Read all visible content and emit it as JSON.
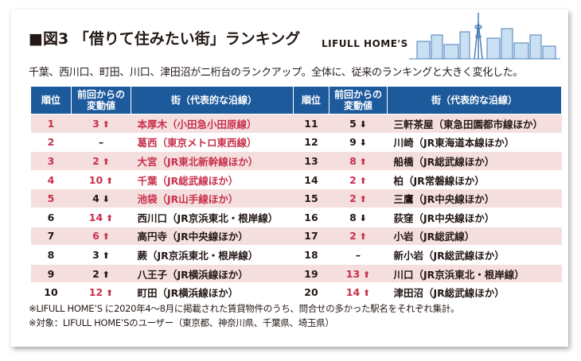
{
  "header": {
    "title": "■図3 「借りて住みたい街」ランキング",
    "brand": "LIFULL HOME'S",
    "subtitle": "千葉、西川口、町田、川口、津田沼が二桁台のランクアップ。全体に、従来のランキングと大きく変化した。"
  },
  "style": {
    "header_color": "#1d5a9c",
    "stripe_color": "#f4dede",
    "highlight_color": "#c8304c",
    "text_color": "#231815"
  },
  "tables": [
    {
      "headers": [
        "順位",
        "前回からの変動値",
        "街（代表的な沿線）"
      ],
      "rows": [
        {
          "rank": 1,
          "change": 3,
          "dir": "up",
          "change_color": "#c8304c",
          "station": "本厚木（小田急小田原線）",
          "highlight": true
        },
        {
          "rank": 2,
          "change": "–",
          "change_color": "#231815",
          "station": "葛西（東京メトロ東西線）",
          "highlight": true
        },
        {
          "rank": 3,
          "change": 2,
          "dir": "up",
          "change_color": "#c8304c",
          "station": "大宮（JR東北新幹線ほか）",
          "highlight": true
        },
        {
          "rank": 4,
          "change": 10,
          "dir": "up",
          "change_color": "#c8304c",
          "station": "千葉（JR総武線ほか）",
          "highlight": true
        },
        {
          "rank": 5,
          "change": 4,
          "dir": "down",
          "change_color": "#231815",
          "station": "池袋（JR山手線ほか）",
          "highlight": true
        },
        {
          "rank": 6,
          "change": 14,
          "dir": "up",
          "change_color": "#c8304c",
          "station": "西川口（JR京浜東北・根岸線）"
        },
        {
          "rank": 7,
          "change": 6,
          "dir": "up",
          "change_color": "#c8304c",
          "station": "高円寺（JR中央線ほか）"
        },
        {
          "rank": 8,
          "change": 3,
          "dir": "up",
          "change_color": "#231815",
          "station": "蕨（JR京浜東北・根岸線）"
        },
        {
          "rank": 9,
          "change": 2,
          "dir": "up",
          "change_color": "#231815",
          "station": "八王子（JR横浜線ほか）"
        },
        {
          "rank": 10,
          "change": 12,
          "dir": "up",
          "change_color": "#c8304c",
          "station": "町田（JR横浜線ほか）"
        }
      ]
    },
    {
      "headers": [
        "順位",
        "前回からの変動値",
        "街（代表的な沿線）"
      ],
      "rows": [
        {
          "rank": 11,
          "change": 5,
          "dir": "down",
          "change_color": "#231815",
          "station": "三軒茶屋（東急田園都市線ほか）"
        },
        {
          "rank": 12,
          "change": 9,
          "dir": "down",
          "change_color": "#231815",
          "station": "川崎（JR東海道本線ほか）"
        },
        {
          "rank": 13,
          "change": 8,
          "dir": "up",
          "change_color": "#c8304c",
          "station": "船橋（JR総武線ほか）"
        },
        {
          "rank": 14,
          "change": 2,
          "dir": "up",
          "change_color": "#c8304c",
          "station": "柏（JR常磐線ほか）"
        },
        {
          "rank": 15,
          "change": 2,
          "dir": "up",
          "change_color": "#c8304c",
          "station": "三鷹（JR中央線ほか）"
        },
        {
          "rank": 16,
          "change": 8,
          "dir": "down",
          "change_color": "#231815",
          "station": "荻窪（JR中央線ほか）"
        },
        {
          "rank": 17,
          "change": 2,
          "dir": "up",
          "change_color": "#c8304c",
          "station": "小岩（JR総武線）"
        },
        {
          "rank": 18,
          "change": "–",
          "change_color": "#231815",
          "station": "新小岩（JR総武線ほか）"
        },
        {
          "rank": 19,
          "change": 13,
          "dir": "up",
          "change_color": "#c8304c",
          "station": "川口（JR京浜東北・根岸線）"
        },
        {
          "rank": 20,
          "change": 14,
          "dir": "up",
          "change_color": "#c8304c",
          "station": "津田沼（JR総武線ほか）"
        }
      ]
    }
  ],
  "notes": [
    "※LIFULL HOME’S に2020年4～8月に掲載された賃貸物件のうち、問合せの多かった駅名をそれぞれ集計。",
    "※対象：LIFULL HOME’Sのユーザー（東京都、神奈川県、千葉県、埼玉県）"
  ]
}
